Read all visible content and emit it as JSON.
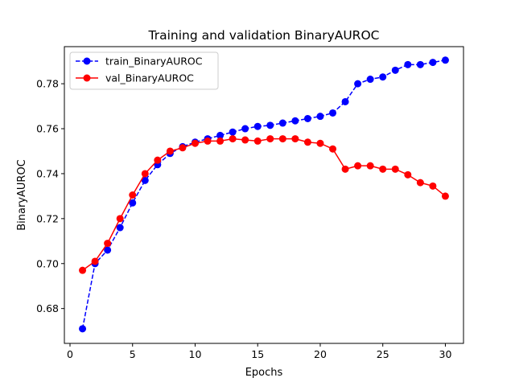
{
  "chart_data": {
    "type": "line",
    "title": "Training and validation BinaryAUROC",
    "xlabel": "Epochs",
    "ylabel": "BinaryAUROC",
    "xlim": [
      -0.45,
      31.45
    ],
    "ylim": [
      0.6645,
      0.7965
    ],
    "xticks": [
      0,
      5,
      10,
      15,
      20,
      25,
      30
    ],
    "yticks": [
      0.68,
      0.7,
      0.72,
      0.74,
      0.76,
      0.78
    ],
    "x": [
      1,
      2,
      3,
      4,
      5,
      6,
      7,
      8,
      9,
      10,
      11,
      12,
      13,
      14,
      15,
      16,
      17,
      18,
      19,
      20,
      21,
      22,
      23,
      24,
      25,
      26,
      27,
      28,
      29,
      30
    ],
    "legend_position": "upper-left",
    "grid": false,
    "series": [
      {
        "name": "train_BinaryAUROC",
        "color": "#0000ff",
        "linestyle": "dashed",
        "values": [
          0.671,
          0.7,
          0.706,
          0.716,
          0.727,
          0.737,
          0.744,
          0.749,
          0.752,
          0.754,
          0.7555,
          0.757,
          0.7585,
          0.76,
          0.761,
          0.7615,
          0.7625,
          0.7635,
          0.7645,
          0.7655,
          0.767,
          0.772,
          0.78,
          0.782,
          0.783,
          0.786,
          0.7885,
          0.7885,
          0.7895,
          0.7905
        ]
      },
      {
        "name": "val_BinaryAUROC",
        "color": "#ff0000",
        "linestyle": "solid",
        "values": [
          0.697,
          0.701,
          0.709,
          0.72,
          0.7305,
          0.74,
          0.746,
          0.75,
          0.7515,
          0.7535,
          0.7545,
          0.7545,
          0.7555,
          0.755,
          0.7545,
          0.7555,
          0.7555,
          0.7555,
          0.754,
          0.7535,
          0.751,
          0.742,
          0.7435,
          0.7435,
          0.742,
          0.742,
          0.7395,
          0.736,
          0.7345,
          0.73
        ]
      }
    ]
  }
}
